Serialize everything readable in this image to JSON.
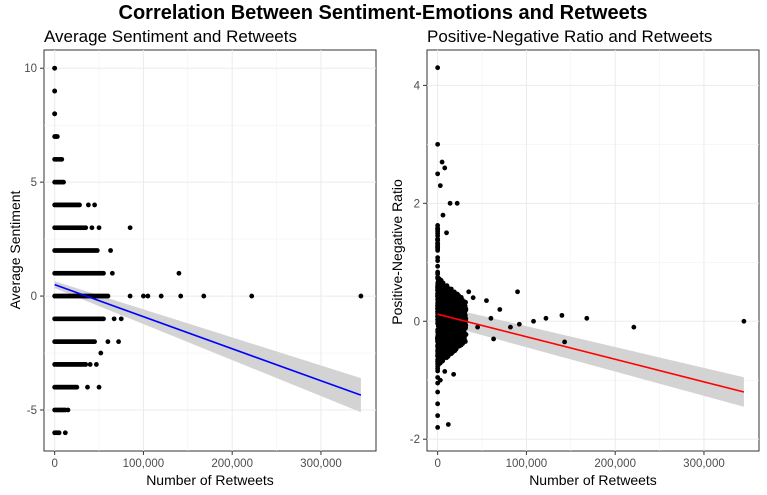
{
  "figure_title": "Correlation Between Sentiment-Emotions and Retweets",
  "chart_data": [
    {
      "type": "scatter",
      "title": "Average Sentiment and Retweets",
      "xlabel": "Number of Retweets",
      "ylabel": "Average Sentiment",
      "xlim": [
        -12000,
        362000
      ],
      "ylim": [
        -6.8,
        10.8
      ],
      "xticks": [
        0,
        100000,
        200000,
        300000
      ],
      "xtick_labels": [
        "0",
        "100,000",
        "200,000",
        "300,000"
      ],
      "yticks": [
        -5,
        0,
        5,
        10
      ],
      "ytick_labels": [
        "-5",
        "0",
        "5",
        "10"
      ],
      "grid": true,
      "point_color": "#000000",
      "dense_bands": [
        {
          "y": -6,
          "x_max": 5000
        },
        {
          "y": -5,
          "x_max": 12000
        },
        {
          "y": -4,
          "x_max": 25000
        },
        {
          "y": -3,
          "x_max": 35000
        },
        {
          "y": -2,
          "x_max": 45000
        },
        {
          "y": -1,
          "x_max": 55000
        },
        {
          "y": 0,
          "x_max": 60000
        },
        {
          "y": 1,
          "x_max": 55000
        },
        {
          "y": 2,
          "x_max": 48000
        },
        {
          "y": 3,
          "x_max": 35000
        },
        {
          "y": 4,
          "x_max": 28000
        },
        {
          "y": 5,
          "x_max": 10000
        },
        {
          "y": 6,
          "x_max": 8000
        },
        {
          "y": 7,
          "x_max": 3000
        },
        {
          "y": 8,
          "x_max": 0
        },
        {
          "y": 9,
          "x_max": 0
        },
        {
          "y": 10,
          "x_max": 0
        }
      ],
      "points": [
        [
          12000,
          -6
        ],
        [
          15000,
          -5
        ],
        [
          37000,
          -4
        ],
        [
          50000,
          -4
        ],
        [
          40000,
          -3
        ],
        [
          47000,
          -3
        ],
        [
          52000,
          -2.5
        ],
        [
          60000,
          -2
        ],
        [
          72000,
          -2
        ],
        [
          67000,
          -1
        ],
        [
          75000,
          -1
        ],
        [
          85000,
          0
        ],
        [
          100000,
          0
        ],
        [
          105000,
          0
        ],
        [
          120000,
          0
        ],
        [
          142000,
          0
        ],
        [
          168000,
          0
        ],
        [
          222000,
          0
        ],
        [
          345000,
          0
        ],
        [
          65000,
          1
        ],
        [
          140000,
          1
        ],
        [
          63000,
          2
        ],
        [
          42000,
          3
        ],
        [
          85000,
          3
        ],
        [
          38000,
          4
        ],
        [
          45000,
          4
        ],
        [
          50000,
          3
        ]
      ],
      "trend": {
        "color": "#0000ff",
        "x": [
          0,
          345000
        ],
        "y": [
          0.5,
          -4.35
        ],
        "band_color": "#d3d3d3",
        "band_lower_end": -5.1,
        "band_upper_end": -3.6
      }
    },
    {
      "type": "scatter",
      "title": "Positive-Negative Ratio and Retweets",
      "xlabel": "Number of Retweets",
      "ylabel": "Positive-Negative Ratio",
      "xlim": [
        -12000,
        362000
      ],
      "ylim": [
        -2.2,
        4.6
      ],
      "xticks": [
        0,
        100000,
        200000,
        300000
      ],
      "xtick_labels": [
        "0",
        "100,000",
        "200,000",
        "300,000"
      ],
      "yticks": [
        -2,
        0,
        2,
        4
      ],
      "ytick_labels": [
        "-2",
        "0",
        "2",
        "4"
      ],
      "grid": true,
      "point_color": "#000000",
      "points": [
        [
          0,
          4.3
        ],
        [
          0,
          3.0
        ],
        [
          0,
          2.5
        ],
        [
          5000,
          2.7
        ],
        [
          8000,
          2.6
        ],
        [
          3000,
          2.3
        ],
        [
          14000,
          2.0
        ],
        [
          22000,
          2.0
        ],
        [
          6000,
          1.8
        ],
        [
          10000,
          1.5
        ],
        [
          0,
          -1.2
        ],
        [
          0,
          -1.4
        ],
        [
          0,
          -1.6
        ],
        [
          0,
          -1.8
        ],
        [
          12000,
          -1.75
        ],
        [
          3000,
          -1.0
        ],
        [
          18000,
          -0.9
        ],
        [
          8000,
          -0.85
        ],
        [
          35000,
          0.5
        ],
        [
          40000,
          0.4
        ],
        [
          55000,
          0.35
        ],
        [
          45000,
          -0.1
        ],
        [
          60000,
          0.05
        ],
        [
          63000,
          -0.3
        ],
        [
          70000,
          0.2
        ],
        [
          82000,
          -0.1
        ],
        [
          90000,
          0.5
        ],
        [
          92000,
          -0.05
        ],
        [
          108000,
          0.0
        ],
        [
          122000,
          0.05
        ],
        [
          140000,
          0.1
        ],
        [
          143000,
          -0.35
        ],
        [
          168000,
          0.05
        ],
        [
          221000,
          -0.1
        ],
        [
          345000,
          0.0
        ]
      ],
      "dense_cluster": {
        "x_range": [
          0,
          32000
        ],
        "y_center": 0.0,
        "y_spread": 0.75
      },
      "trend": {
        "color": "#ff0000",
        "x": [
          0,
          345000
        ],
        "y": [
          0.12,
          -1.2
        ],
        "band_color": "#d3d3d3",
        "band_lower_end": -1.45,
        "band_upper_end": -0.95
      }
    }
  ]
}
